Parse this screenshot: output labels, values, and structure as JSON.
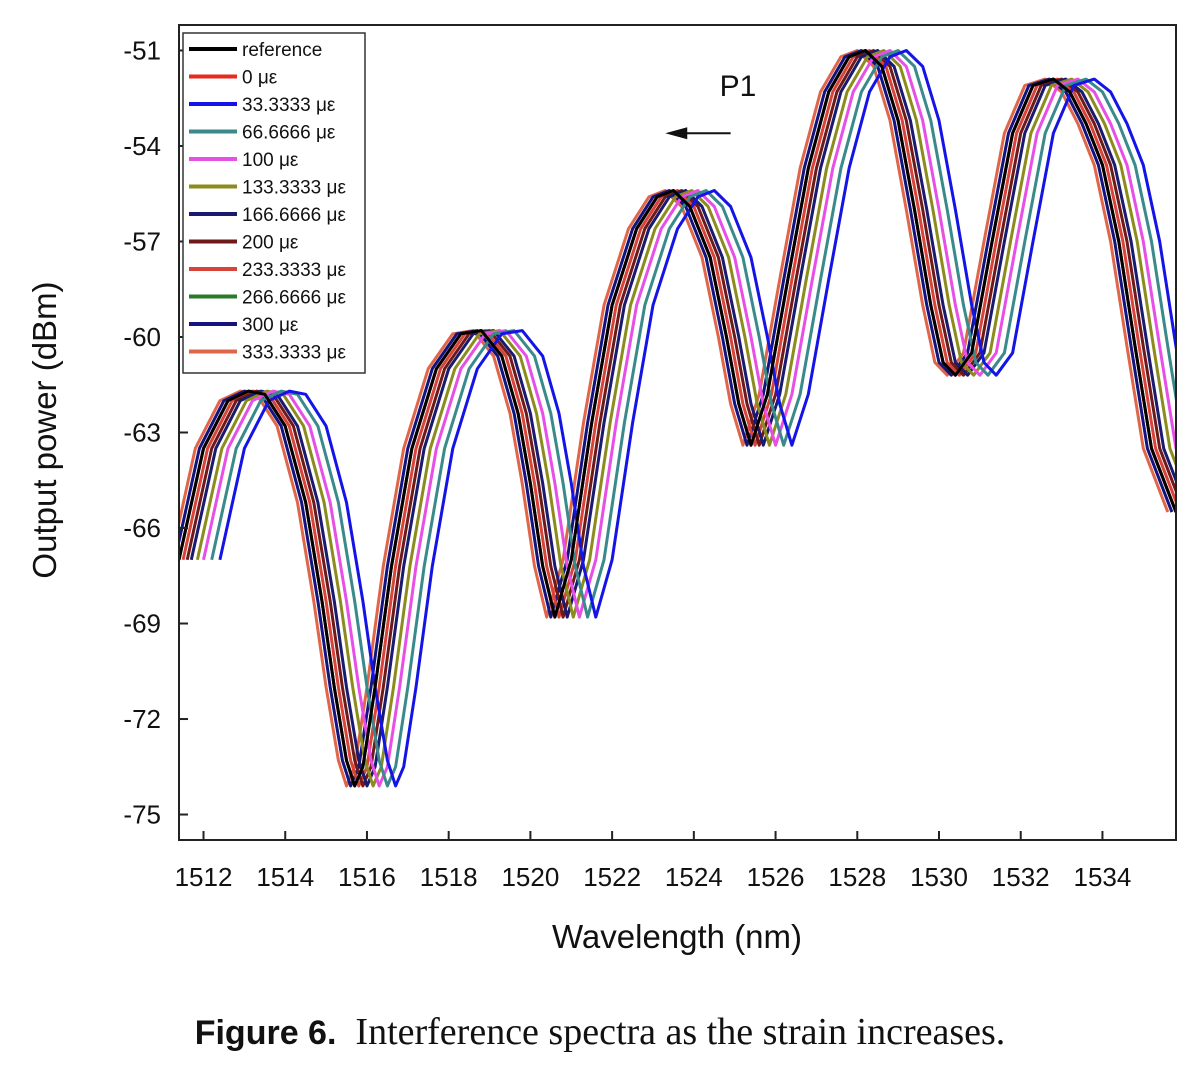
{
  "chart_data": {
    "type": "line",
    "title": "",
    "xlabel": "Wavelength (nm)",
    "ylabel": "Output power (dBm)",
    "xlim": [
      1511.4,
      1535.8
    ],
    "ylim": [
      -75.8,
      -50.2
    ],
    "x_ticks": [
      1512,
      1514,
      1516,
      1518,
      1520,
      1522,
      1524,
      1526,
      1528,
      1530,
      1532,
      1534
    ],
    "y_ticks": [
      -51,
      -54,
      -57,
      -60,
      -63,
      -66,
      -69,
      -72,
      -75
    ],
    "grid": false,
    "legend_position": "top-left",
    "series": [
      {
        "name": "reference",
        "color": "#000000",
        "shift_nm": 0.0
      },
      {
        "name": "0 με",
        "color": "#e8291c",
        "shift_nm": 0.0
      },
      {
        "name": "33.3333 με",
        "color": "#1414e6",
        "shift_nm": 1.0
      },
      {
        "name": "66.6666 με",
        "color": "#3a8a8c",
        "shift_nm": 0.8
      },
      {
        "name": "100 με",
        "color": "#e650e6",
        "shift_nm": 0.6
      },
      {
        "name": "133.3333 με",
        "color": "#8c8c1e",
        "shift_nm": 0.45
      },
      {
        "name": "166.6666 με",
        "color": "#1a1a6e",
        "shift_nm": 0.3
      },
      {
        "name": "200 με",
        "color": "#6e1a1a",
        "shift_nm": 0.2
      },
      {
        "name": "233.3333 με",
        "color": "#d9443a",
        "shift_nm": 0.1
      },
      {
        "name": "266.6666 με",
        "color": "#2a7a2a",
        "shift_nm": 0.0
      },
      {
        "name": "300 με",
        "color": "#141480",
        "shift_nm": -0.1
      },
      {
        "name": "333.3333 με",
        "color": "#e0664a",
        "shift_nm": -0.2
      }
    ],
    "base_spectrum": {
      "x": [
        1511.4,
        1512.0,
        1512.6,
        1513.1,
        1513.5,
        1514.0,
        1514.5,
        1514.9,
        1515.2,
        1515.5,
        1515.7,
        1515.9,
        1516.2,
        1516.6,
        1517.1,
        1517.7,
        1518.3,
        1518.8,
        1519.3,
        1519.7,
        1520.0,
        1520.3,
        1520.6,
        1521.0,
        1521.5,
        1522.0,
        1522.6,
        1523.1,
        1523.5,
        1523.9,
        1524.4,
        1524.8,
        1525.1,
        1525.4,
        1525.8,
        1526.3,
        1526.8,
        1527.3,
        1527.8,
        1528.2,
        1528.6,
        1529.0,
        1529.4,
        1529.8,
        1530.1,
        1530.4,
        1530.8,
        1531.3,
        1531.8,
        1532.3,
        1532.8,
        1533.2,
        1533.6,
        1534.0,
        1534.4,
        1534.8,
        1535.2,
        1535.8
      ],
      "y": [
        -67.0,
        -63.5,
        -62.0,
        -61.7,
        -61.8,
        -62.8,
        -65.2,
        -68.3,
        -71.0,
        -73.3,
        -74.1,
        -73.5,
        -71.0,
        -67.2,
        -63.5,
        -61.0,
        -59.9,
        -59.8,
        -60.6,
        -62.4,
        -64.6,
        -67.2,
        -68.8,
        -67.0,
        -62.7,
        -59.0,
        -56.6,
        -55.6,
        -55.4,
        -55.9,
        -57.5,
        -60.0,
        -62.1,
        -63.4,
        -61.8,
        -58.2,
        -54.7,
        -52.3,
        -51.2,
        -51.0,
        -51.5,
        -53.2,
        -56.0,
        -59.0,
        -60.8,
        -61.2,
        -60.5,
        -57.0,
        -53.6,
        -52.1,
        -51.9,
        -52.3,
        -53.3,
        -54.6,
        -57.0,
        -60.3,
        -63.5,
        -65.5
      ]
    },
    "annotations": [
      {
        "text": "P1",
        "arrow": "left",
        "x_from": 1524.9,
        "x_to": 1523.3,
        "y": -53.6
      }
    ]
  },
  "caption": {
    "label": "Figure 6.",
    "text": "Interference spectra as the strain increases."
  }
}
